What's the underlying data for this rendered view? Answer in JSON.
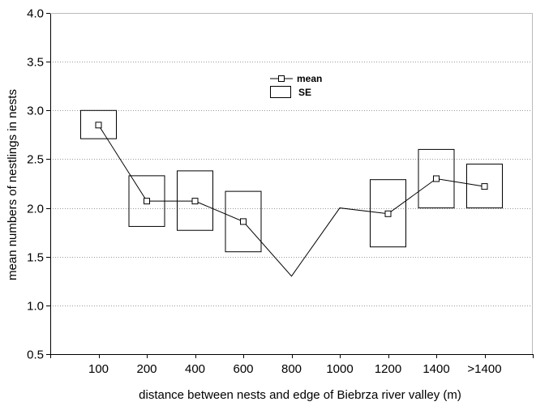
{
  "chart_data": {
    "type": "line",
    "title": "",
    "xlabel": "distance between nests and edge of Biebrza river valley (m)",
    "ylabel": "mean numbers of nestlings in nests",
    "categories": [
      "100",
      "200",
      "400",
      "600",
      "800",
      "1000",
      "1200",
      "1400",
      ">1400"
    ],
    "ylim": [
      0.5,
      4.0
    ],
    "yticks": [
      "0.5",
      "1.0",
      "1.5",
      "2.0",
      "2.5",
      "3.0",
      "3.5",
      "4.0"
    ],
    "grid": "horizontal dotted",
    "series": [
      {
        "name": "mean",
        "values": [
          2.85,
          2.07,
          2.07,
          1.86,
          1.3,
          2.0,
          1.94,
          2.3,
          2.22
        ],
        "marker_shown": [
          true,
          true,
          true,
          true,
          false,
          false,
          true,
          true,
          true
        ]
      },
      {
        "name": "SE",
        "se_low": [
          2.71,
          1.81,
          1.77,
          1.55,
          null,
          null,
          1.6,
          2.0,
          2.0
        ],
        "se_high": [
          3.0,
          2.33,
          2.38,
          2.17,
          null,
          null,
          2.29,
          2.6,
          2.45
        ]
      }
    ],
    "legend": {
      "position": "top-center",
      "mean_label": "mean",
      "se_label": "SE"
    },
    "colors": {
      "line": "#000000",
      "grid": "#9a9a9a",
      "background": "#ffffff"
    }
  }
}
